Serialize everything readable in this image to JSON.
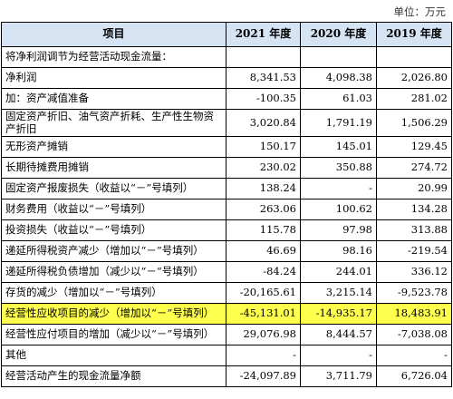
{
  "unit_label": "单位：万元",
  "headers": [
    "项目",
    "2021 年度",
    "2020 年度",
    "2019 年度"
  ],
  "colors": {
    "header_bg": "#d6e3f3",
    "highlight": "#ffff4d",
    "border": "#000000"
  },
  "rows": [
    {
      "item": "将净利润调节为经营活动现金流量：",
      "y2021": "",
      "y2020": "",
      "y2019": ""
    },
    {
      "item": "净利润",
      "y2021": "8,341.53",
      "y2020": "4,098.38",
      "y2019": "2,026.80"
    },
    {
      "item": "加：资产减值准备",
      "y2021": "-100.35",
      "y2020": "61.03",
      "y2019": "281.02"
    },
    {
      "item": "固定资产折旧、油气资产折耗、生产性生物资产折旧",
      "y2021": "3,020.84",
      "y2020": "1,791.19",
      "y2019": "1,506.29"
    },
    {
      "item": "无形资产摊销",
      "y2021": "150.17",
      "y2020": "145.01",
      "y2019": "129.45"
    },
    {
      "item": "长期待摊费用摊销",
      "y2021": "230.02",
      "y2020": "350.88",
      "y2019": "274.72"
    },
    {
      "item": "固定资产报废损失（收益以“－”号填列）",
      "y2021": "138.24",
      "y2020": "-",
      "y2019": "20.99"
    },
    {
      "item": "财务费用（收益以“－”号填列）",
      "y2021": "263.06",
      "y2020": "100.62",
      "y2019": "134.28"
    },
    {
      "item": "投资损失（收益以“－”号填列）",
      "y2021": "115.78",
      "y2020": "97.98",
      "y2019": "313.88"
    },
    {
      "item": "递延所得税资产减少（增加以“－”号填列）",
      "y2021": "46.69",
      "y2020": "98.16",
      "y2019": "-219.54"
    },
    {
      "item": "递延所得税负债增加（减少以“－”号填列）",
      "y2021": "-84.24",
      "y2020": "244.01",
      "y2019": "336.12"
    },
    {
      "item": "存货的减少（增加以“－”号填列）",
      "y2021": "-20,165.61",
      "y2020": "3,215.14",
      "y2019": "-9,523.78"
    },
    {
      "item": "经营性应收项目的减少（增加以“－”号填列）",
      "y2021": "-45,131.01",
      "y2020": "-14,935.17",
      "y2019": "18,483.91"
    },
    {
      "item": "经营性应付项目的增加（减少以“－”号填列）",
      "y2021": "29,076.98",
      "y2020": "8,444.57",
      "y2019": "-7,038.08"
    },
    {
      "item": "其他",
      "y2021": "-",
      "y2020": "-",
      "y2019": "-"
    },
    {
      "item": "经营活动产生的现金流量净额",
      "y2021": "-24,097.89",
      "y2020": "3,711.79",
      "y2019": "6,726.04"
    }
  ]
}
